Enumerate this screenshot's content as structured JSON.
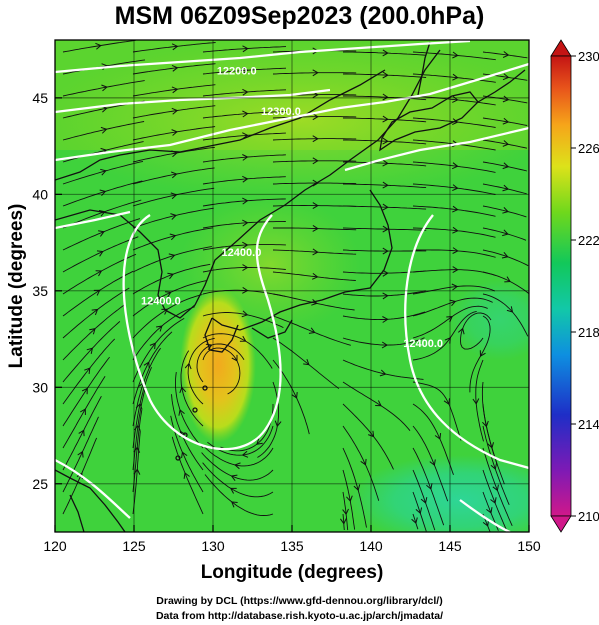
{
  "title": "MSM 06Z09Sep2023 (200.0hPa)",
  "x_axis": {
    "label": "Longitude (degrees)",
    "range": [
      120,
      150
    ],
    "ticks": [
      120,
      125,
      130,
      135,
      140,
      145,
      150
    ],
    "tick_labels": [
      "120",
      "125",
      "130",
      "135",
      "140",
      "145",
      "150"
    ]
  },
  "y_axis": {
    "label": "Latitude  (degrees)",
    "range": [
      22.5,
      48
    ],
    "ticks": [
      25,
      30,
      35,
      40,
      45
    ],
    "tick_labels": [
      "25",
      "30",
      "35",
      "40",
      "45"
    ]
  },
  "colorbar": {
    "range": [
      210,
      230
    ],
    "labels": [
      "230",
      "226",
      "222",
      "218",
      "214",
      "210"
    ],
    "label_values": [
      230,
      226,
      222,
      218,
      214,
      210
    ],
    "colors": [
      "#d0188a",
      "#7d1ab5",
      "#1e2ec7",
      "#0ea5d8",
      "#12c8a8",
      "#12c85a",
      "#6fd81c",
      "#dde21a",
      "#f6a51a",
      "#e8541b",
      "#c41414"
    ]
  },
  "contour_labels": [
    {
      "text": "12200.0",
      "lon": 131.5,
      "lat": 46.2
    },
    {
      "text": "12300.0",
      "lon": 134.3,
      "lat": 44.1
    },
    {
      "text": "12400.0",
      "lon": 126.7,
      "lat": 34.3
    },
    {
      "text": "12400.0",
      "lon": 131.8,
      "lat": 36.8
    },
    {
      "text": "12400.0",
      "lon": 143.3,
      "lat": 32.1
    }
  ],
  "credits": [
    "Drawing by DCL (https://www.gfd-dennou.org/library/dcl/)",
    "Data from http://database.rish.kyoto-u.ac.jp/arch/jmadata/"
  ]
}
